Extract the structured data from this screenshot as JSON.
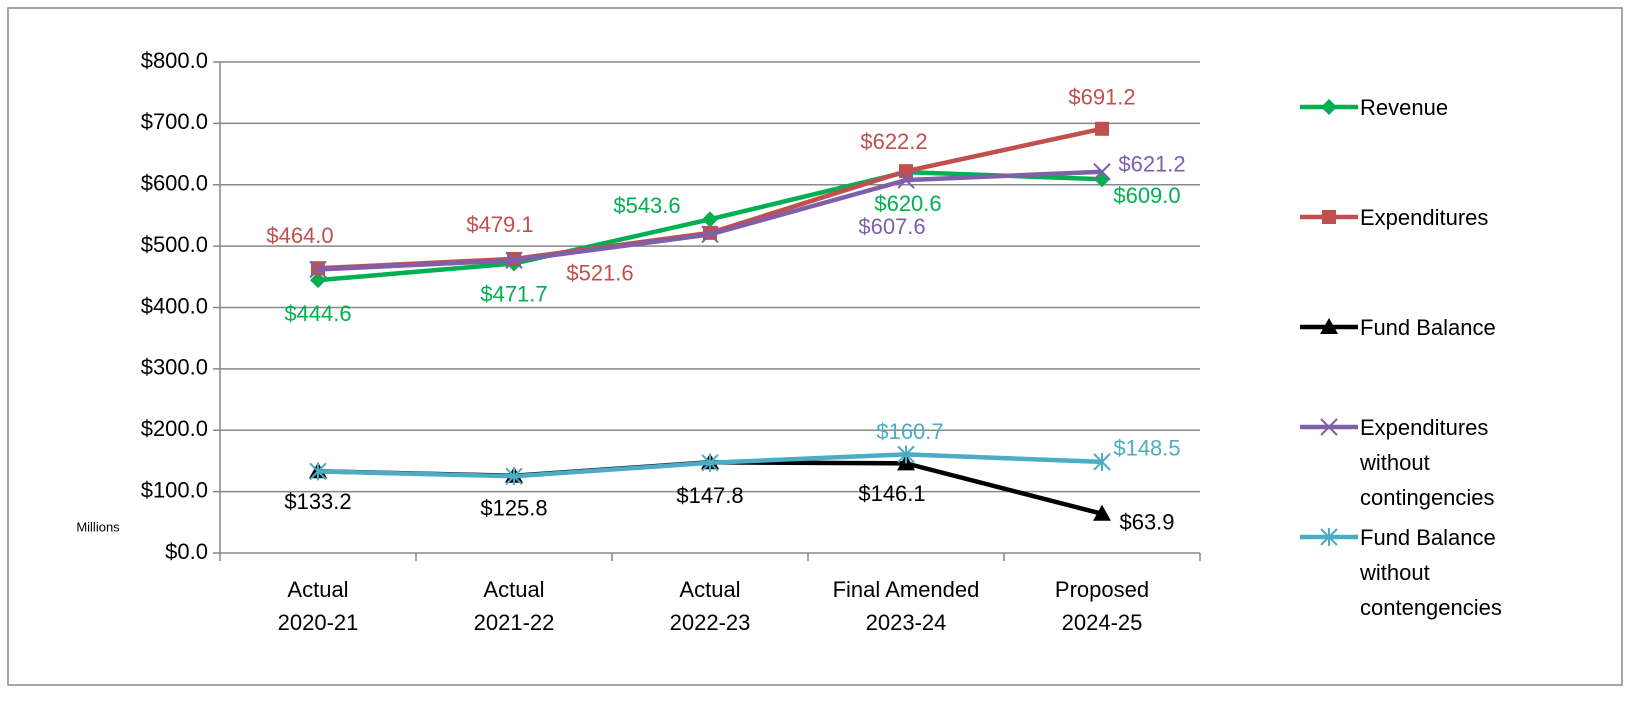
{
  "chart_data": {
    "type": "line",
    "y_label": "Millions",
    "categories": [
      [
        "Actual",
        "2020-21"
      ],
      [
        "Actual",
        "2021-22"
      ],
      [
        "Actual",
        "2022-23"
      ],
      [
        "Final Amended",
        "2023-24"
      ],
      [
        "Proposed",
        "2024-25"
      ]
    ],
    "ylim": [
      0,
      800
    ],
    "yticks": [
      {
        "value": 0,
        "label": "$0.0"
      },
      {
        "value": 100,
        "label": "$100.0"
      },
      {
        "value": 200,
        "label": "$200.0"
      },
      {
        "value": 300,
        "label": "$300.0"
      },
      {
        "value": 400,
        "label": "$400.0"
      },
      {
        "value": 500,
        "label": "$500.0"
      },
      {
        "value": 600,
        "label": "$600.0"
      },
      {
        "value": 700,
        "label": "$700.0"
      },
      {
        "value": 800,
        "label": "$800.0"
      }
    ],
    "grid": true,
    "legend": "right",
    "series": [
      {
        "name": "Revenue",
        "color": "#00b050",
        "marker": "diamond",
        "values": [
          444.6,
          471.7,
          543.6,
          620.6,
          609.0
        ],
        "value_labels": [
          "$444.6",
          "$471.7",
          "$543.6",
          "$620.6",
          "$609.0"
        ]
      },
      {
        "name": "Expenditures",
        "color": "#c0504d",
        "marker": "square",
        "values": [
          464.0,
          479.1,
          521.6,
          622.2,
          691.2
        ],
        "value_labels": [
          "$464.0",
          "$479.1",
          "$521.6",
          "$622.2",
          "$691.2"
        ]
      },
      {
        "name": "Fund Balance",
        "color": "#000000",
        "marker": "triangle",
        "values": [
          133.2,
          125.8,
          147.8,
          146.1,
          63.9
        ],
        "value_labels": [
          "$133.2",
          "$125.8",
          "$147.8",
          "$146.1",
          "$63.9"
        ]
      },
      {
        "name": "Expenditures without contingencies",
        "color": "#7f5fa8",
        "marker": "x",
        "values": [
          462,
          477,
          519,
          607.6,
          621.2
        ],
        "value_labels": [
          null,
          null,
          null,
          "$607.6",
          "$621.2"
        ]
      },
      {
        "name": "Fund Balance without contengencies",
        "color": "#4bacc6",
        "marker": "star",
        "values": [
          133,
          125,
          147,
          160.7,
          148.5
        ],
        "value_labels": [
          null,
          null,
          null,
          "$160.7",
          "$148.5"
        ]
      }
    ]
  }
}
